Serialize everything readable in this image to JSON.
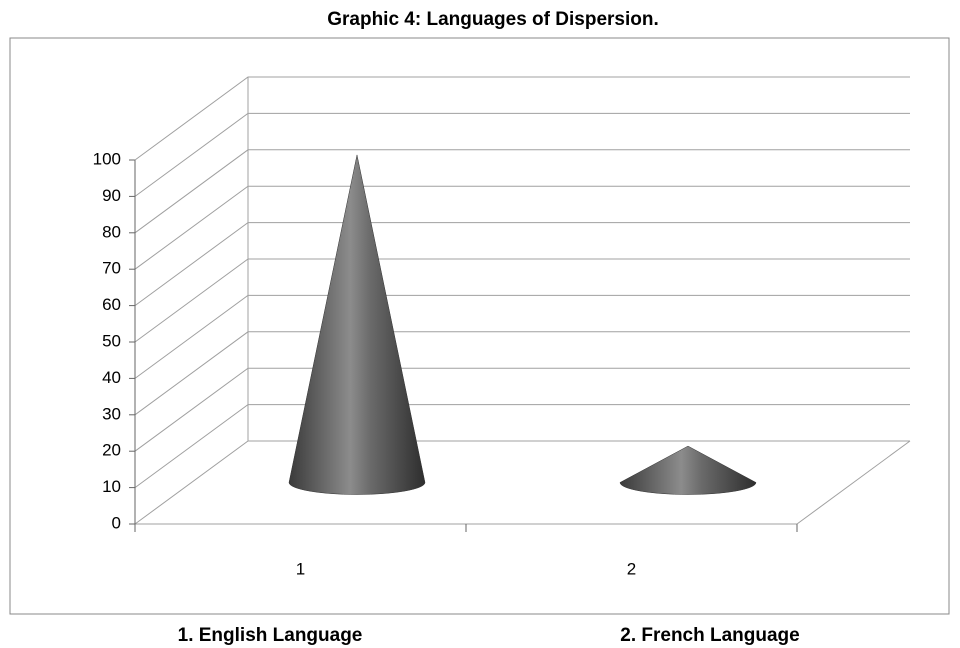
{
  "chart_data": {
    "type": "cone",
    "title": "Graphic 4: Languages of Dispersion.",
    "categories": [
      "1",
      "2"
    ],
    "values": [
      90,
      10
    ],
    "color": "#555555",
    "ylim": [
      0,
      100
    ],
    "yticks": [
      0,
      10,
      20,
      30,
      40,
      50,
      60,
      70,
      80,
      90,
      100
    ],
    "grid": true,
    "notes": [
      "1.   English Language",
      "2. French  Language"
    ]
  }
}
